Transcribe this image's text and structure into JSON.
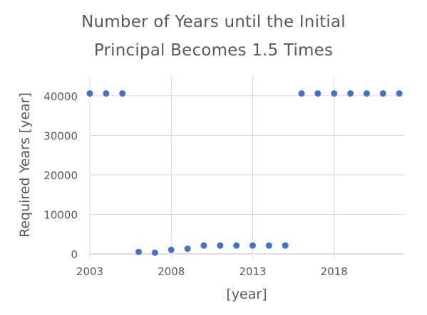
{
  "chart_data": {
    "type": "scatter",
    "title_lines": [
      "Number of Years until the Initial",
      "Principal Becomes 1.5 Times"
    ],
    "xlabel": "[year]",
    "ylabel": "Required Years [year]",
    "xlim": [
      2003,
      2022.3
    ],
    "ylim": [
      0,
      45000
    ],
    "x_ticks": [
      2003,
      2008,
      2013,
      2018
    ],
    "y_ticks": [
      0,
      10000,
      20000,
      30000,
      40000
    ],
    "grid": "horizontal",
    "legend": "none",
    "marker_color": "#4472C4",
    "points": [
      {
        "x": 2003,
        "y": 40600
      },
      {
        "x": 2004,
        "y": 40600
      },
      {
        "x": 2005,
        "y": 40600
      },
      {
        "x": 2006,
        "y": 500
      },
      {
        "x": 2007,
        "y": 300
      },
      {
        "x": 2008,
        "y": 1000
      },
      {
        "x": 2009,
        "y": 1300
      },
      {
        "x": 2010,
        "y": 2100
      },
      {
        "x": 2011,
        "y": 2100
      },
      {
        "x": 2012,
        "y": 2100
      },
      {
        "x": 2013,
        "y": 2100
      },
      {
        "x": 2014,
        "y": 2100
      },
      {
        "x": 2015,
        "y": 2100
      },
      {
        "x": 2016,
        "y": 40600
      },
      {
        "x": 2017,
        "y": 40600
      },
      {
        "x": 2018,
        "y": 40600
      },
      {
        "x": 2019,
        "y": 40600
      },
      {
        "x": 2020,
        "y": 40600
      },
      {
        "x": 2021,
        "y": 40600
      },
      {
        "x": 2022,
        "y": 40600
      }
    ]
  }
}
